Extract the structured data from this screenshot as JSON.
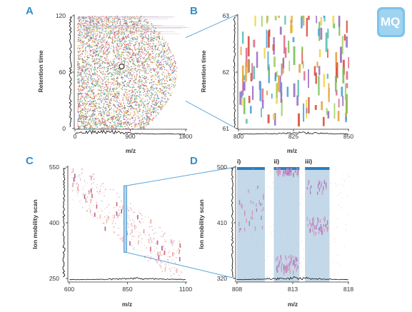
{
  "colors": {
    "panel_letter": "#2f8fc9",
    "zoom_line": "#4f9fd8",
    "window_fill": "#b9d1e4",
    "window_bar": "#2a7fc0",
    "profile": "#111111",
    "logo": "#7ec3ea"
  },
  "logo": {
    "text": "MQ",
    "icon": "maxquant-logo-icon"
  },
  "chart_data": [
    {
      "panel": "A",
      "type": "scatter",
      "xlabel": "m/z",
      "ylabel": "Retention time",
      "xlim": [
        0,
        1800
      ],
      "ylim": [
        0,
        120
      ],
      "xticks": [
        "0",
        "900",
        "1800"
      ],
      "yticks": [
        "0",
        "60",
        "120"
      ],
      "highlight": {
        "x": 760,
        "y": 66,
        "shape": "circle"
      },
      "point_colors": [
        "#d8574a",
        "#e98b3a",
        "#6bb24f",
        "#9c62b3",
        "#3b88c4",
        "#e0c34a",
        "#c8466b",
        "#4fb3a7"
      ],
      "marginal_profiles": [
        "retention-time",
        "m/z"
      ]
    },
    {
      "panel": "B",
      "type": "scatter",
      "xlabel": "m/z",
      "ylabel": "Retention time",
      "xlim": [
        800,
        850
      ],
      "ylim": [
        61,
        63
      ],
      "xticks": [
        "800",
        "825",
        "850"
      ],
      "yticks": [
        "61",
        "62",
        "63"
      ],
      "point_colors": [
        "#e6a23c",
        "#79c15b",
        "#9a6fc4",
        "#4aa3d9",
        "#e06b8e",
        "#f0d64c",
        "#5cc1b0",
        "#d9503f",
        "#a4d16c"
      ],
      "marginal_profiles": [
        "retention-time",
        "m/z"
      ]
    },
    {
      "panel": "C",
      "type": "scatter",
      "xlabel": "m/z",
      "ylabel": "Ion mobility scan",
      "xlim": [
        550,
        1100
      ],
      "ylim": [
        250,
        550
      ],
      "xticks": [
        "600",
        "850",
        "1100"
      ],
      "yticks": [
        "250",
        "400",
        "550"
      ],
      "highlight_range": {
        "x": [
          808,
          818
        ],
        "y": [
          320,
          500
        ]
      },
      "point_colors": [
        "#e59a8f",
        "#c7566d",
        "#a34c8a",
        "#f0b6a6"
      ],
      "marginal_profiles": [
        "ion-mobility",
        "m/z"
      ]
    },
    {
      "panel": "D",
      "type": "scatter",
      "xlabel": "m/z",
      "ylabel": "Ion mobility scan",
      "xlim": [
        808,
        818
      ],
      "ylim": [
        320,
        500
      ],
      "xticks": [
        "808",
        "813",
        "818"
      ],
      "yticks": [
        "320",
        "410",
        "500"
      ],
      "windows": [
        {
          "label": "i)",
          "x": [
            808,
            810.5
          ]
        },
        {
          "label": "ii)",
          "x": [
            811.3,
            813.6
          ]
        },
        {
          "label": "iii)",
          "x": [
            814.1,
            816.3
          ]
        }
      ],
      "point_colors": [
        "#a56bb8",
        "#c98bd1",
        "#d68fa8"
      ],
      "marginal_profiles": [
        "ion-mobility",
        "m/z"
      ]
    }
  ]
}
